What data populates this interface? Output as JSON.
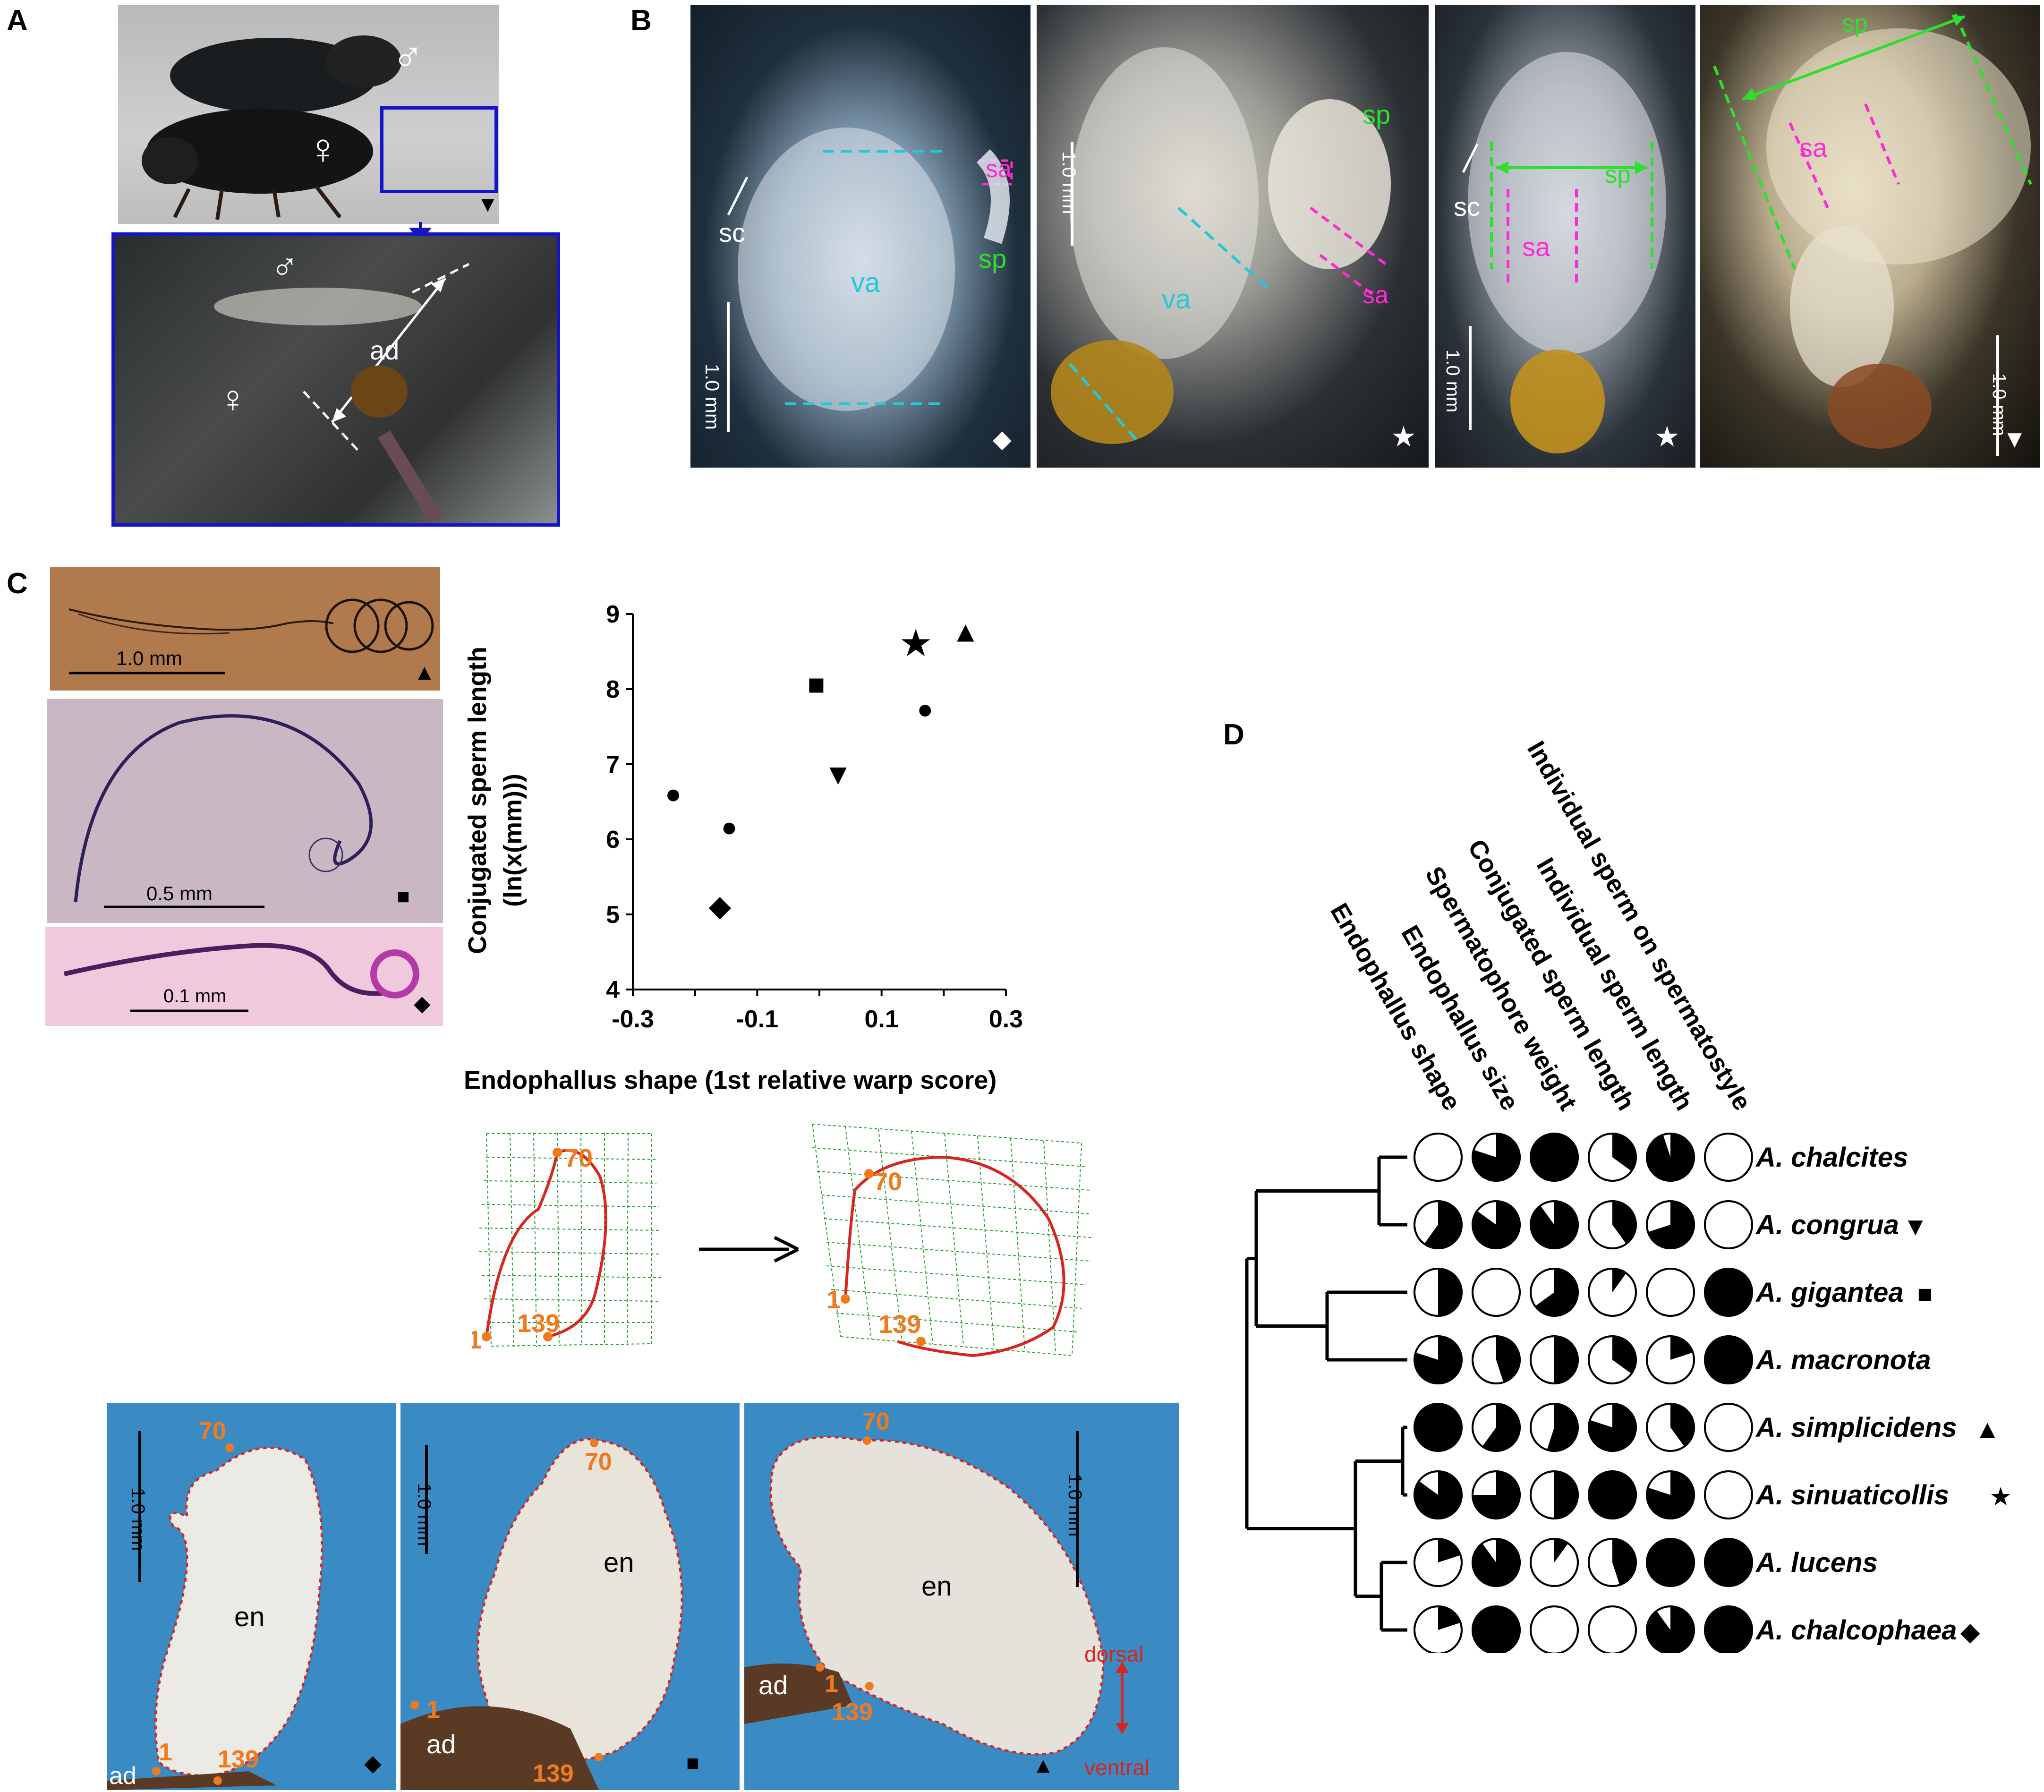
{
  "panels": {
    "a": {
      "letter": "A",
      "male": "♂",
      "female": "♀",
      "ad": "ad",
      "marker": "▼"
    },
    "b": {
      "letter": "B",
      "photos": [
        {
          "sc": "sc",
          "va": "va",
          "sa": "sa",
          "sp": "sp",
          "scale": "1.0 mm",
          "marker": "◆"
        },
        {
          "va": "va",
          "sa": "sa",
          "sp": "sp",
          "scale": "1.0 mm",
          "marker": "★"
        },
        {
          "sc": "sc",
          "sa": "sa",
          "sp": "sp",
          "scale": "1.0 mm",
          "marker": "★"
        },
        {
          "sa": "sa",
          "sp": "sp",
          "scale": "1.0 mm",
          "marker": "▼"
        }
      ]
    },
    "c": {
      "letter": "C",
      "sperm_photos": [
        {
          "scale": "1.0 mm",
          "marker": "▲"
        },
        {
          "scale": "0.5 mm",
          "marker": "■"
        },
        {
          "scale": "0.1 mm",
          "marker": "◆"
        }
      ],
      "warp_grid": {
        "left_labels": [
          "70",
          "1",
          "139"
        ],
        "right_labels": [
          "70",
          "1",
          "139"
        ]
      },
      "endophallus_photos": [
        {
          "scale": "1.0 mm",
          "en": "en",
          "ad": "ad",
          "l70": "70",
          "l1": "1",
          "l139": "139",
          "marker": "◆"
        },
        {
          "scale": "1.0 mm",
          "en": "en",
          "ad": "ad",
          "l70": "70",
          "l1": "1",
          "l139": "139",
          "marker": "■"
        },
        {
          "scale": "1.0 mm",
          "en": "en",
          "ad": "ad",
          "l70": "70",
          "l1": "1",
          "l139": "139",
          "marker": "▲",
          "dorsal": "dorsal",
          "ventral": "ventral"
        }
      ]
    },
    "d": {
      "letter": "D"
    }
  },
  "chart_data": {
    "type": "scatter",
    "xlabel": "Endophallus shape (1st relative warp score)",
    "ylabel_line1": "Conjugated sperm length",
    "ylabel_line2": "(ln(x(mm)))",
    "xlim": [
      -0.3,
      0.3
    ],
    "ylim": [
      4,
      9
    ],
    "xticks": [
      "-0.3",
      "-0.1",
      "0.1",
      "0.3"
    ],
    "yticks": [
      "4",
      "5",
      "6",
      "7",
      "8",
      "9"
    ],
    "points": [
      {
        "x": -0.235,
        "y": 6.62,
        "marker": "●"
      },
      {
        "x": -0.145,
        "y": 6.18,
        "marker": "●"
      },
      {
        "x": -0.16,
        "y": 5.12,
        "marker": "◆"
      },
      {
        "x": -0.005,
        "y": 8.07,
        "marker": "■"
      },
      {
        "x": 0.03,
        "y": 6.87,
        "marker": "▼"
      },
      {
        "x": 0.155,
        "y": 8.58,
        "marker": "★"
      },
      {
        "x": 0.17,
        "y": 7.75,
        "marker": "●"
      },
      {
        "x": 0.235,
        "y": 8.77,
        "marker": "▲"
      }
    ]
  },
  "phylogeny": {
    "traits": [
      "Endophallus shape",
      "Endophallus size",
      "Spermatophore weight",
      "Conjugated sperm length",
      "Individual sperm length",
      "Individual sperm on spermatostyle"
    ],
    "species": [
      {
        "name": "A. chalcites",
        "marker": "",
        "fills": [
          0,
          0.8,
          1,
          0.35,
          0.95,
          0
        ]
      },
      {
        "name": "A. congrua",
        "marker": "▼",
        "fills": [
          0.6,
          0.85,
          0.9,
          0.4,
          0.7,
          0
        ]
      },
      {
        "name": "A. gigantea",
        "marker": "■",
        "fills": [
          0.5,
          0,
          0.65,
          0.1,
          0,
          1
        ]
      },
      {
        "name": "A. macronota",
        "marker": "",
        "fills": [
          0.8,
          0.45,
          0.5,
          0.35,
          0.2,
          1
        ]
      },
      {
        "name": "A. simplicidens",
        "marker": "▲",
        "fills": [
          1,
          0.6,
          0.55,
          0.8,
          0.4,
          0
        ]
      },
      {
        "name": "A. sinuaticollis",
        "marker": "★",
        "fills": [
          0.85,
          0.75,
          0.5,
          1,
          0.8,
          0
        ]
      },
      {
        "name": "A. lucens",
        "marker": "",
        "fills": [
          0.2,
          0.9,
          0.1,
          0.45,
          1,
          1
        ]
      },
      {
        "name": "A. chalcophaea",
        "marker": "◆",
        "fills": [
          0.2,
          1,
          0,
          0,
          0.9,
          1
        ]
      }
    ]
  }
}
